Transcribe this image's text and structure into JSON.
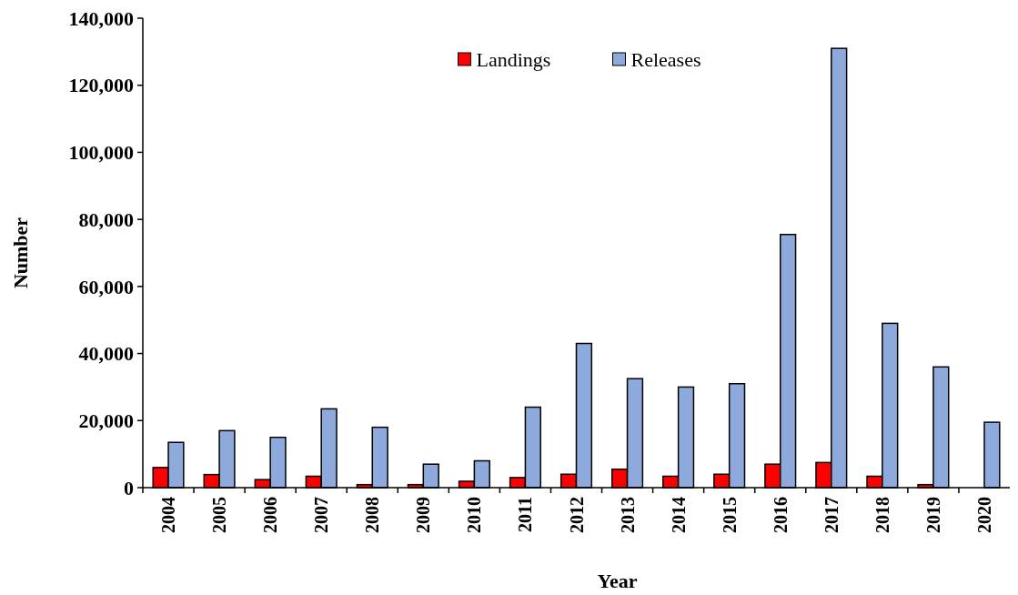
{
  "chart_data": {
    "type": "bar",
    "xlabel": "Year",
    "ylabel": "Number",
    "categories": [
      "2004",
      "2005",
      "2006",
      "2007",
      "2008",
      "2009",
      "2010",
      "2011",
      "2012",
      "2013",
      "2014",
      "2015",
      "2016",
      "2017",
      "2018",
      "2019",
      "2020"
    ],
    "series": [
      {
        "name": "Landings",
        "color": "#ff0000",
        "values": [
          6000,
          3900,
          2400,
          3400,
          900,
          900,
          1900,
          3000,
          4000,
          5500,
          3400,
          4000,
          7000,
          7500,
          3400,
          900,
          0
        ]
      },
      {
        "name": "Releases",
        "color": "#8eaadc",
        "values": [
          13500,
          17000,
          15000,
          23500,
          18000,
          7000,
          8000,
          24000,
          43000,
          32500,
          30000,
          31000,
          75500,
          131000,
          49000,
          36000,
          19500
        ]
      }
    ],
    "ylim": [
      0,
      140000
    ],
    "yticks": [
      {
        "value": 0,
        "label": "0"
      },
      {
        "value": 20000,
        "label": "20,000"
      },
      {
        "value": 40000,
        "label": "40,000"
      },
      {
        "value": 60000,
        "label": "60,000"
      },
      {
        "value": 80000,
        "label": "80,000"
      },
      {
        "value": 100000,
        "label": "100,000"
      },
      {
        "value": 120000,
        "label": "120,000"
      },
      {
        "value": 140000,
        "label": "140,000"
      }
    ],
    "grid": false,
    "legend": "top"
  }
}
